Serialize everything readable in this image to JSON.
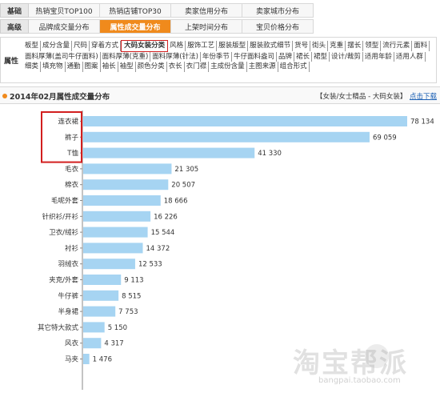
{
  "nav": {
    "row1": {
      "label": "基础",
      "tabs": [
        "热销宝贝TOP100",
        "热销店铺TOP30",
        "卖家信用分布",
        "卖家城市分布"
      ]
    },
    "row2": {
      "label": "高级",
      "tabs": [
        "品牌成交量分布",
        "属性成交量分布",
        "上架时间分布",
        "宝贝价格分布"
      ],
      "active_index": 1
    }
  },
  "attributes": {
    "label": "属性",
    "items": [
      "板型",
      "成分含量",
      "尺码",
      "穿着方式",
      "大码女装分类",
      "风格",
      "服饰工艺",
      "服装版型",
      "服装款式细节",
      "货号",
      "街头",
      "克重",
      "摆长",
      "领型",
      "流行元素",
      "面料",
      "面料厚薄(盖司牛仔面料)",
      "面料厚薄(克重)",
      "面料厚薄(针法)",
      "年份季节",
      "牛仔面料盎司",
      "品牌",
      "裙长",
      "裙型",
      "设计/裁剪",
      "适用年龄",
      "适用人群",
      "细类",
      "填充物",
      "通勤",
      "图案",
      "袖长",
      "袖型",
      "颜色分类",
      "衣长",
      "衣门襟",
      "主成份含量",
      "主图来源",
      "组合形式"
    ],
    "selected_index": 4
  },
  "section": {
    "title": "2014年02月属性成交量分布",
    "breadcrumb": "【女装/女士精品 - 大码女装】",
    "link": "点击下载"
  },
  "colors": {
    "bar": "#a6d4f2",
    "accent": "#f08a1c",
    "highlight": "#d21f1f"
  },
  "chart_data": {
    "type": "bar",
    "orientation": "horizontal",
    "categories": [
      "连衣裙",
      "裤子",
      "T恤",
      "毛衣",
      "棉衣",
      "毛呢外套",
      "针织衫/开衫",
      "卫衣/绒衫",
      "衬衫",
      "羽绒衣",
      "夹克/外套",
      "牛仔裤",
      "半身裙",
      "其它特大款式",
      "风衣",
      "马夹"
    ],
    "values": [
      78134,
      69059,
      41330,
      21305,
      20507,
      18666,
      16226,
      15544,
      14372,
      12533,
      9113,
      8515,
      7753,
      5150,
      4317,
      1476
    ],
    "value_labels": [
      "78 134",
      "69 059",
      "41 330",
      "21 305",
      "20 507",
      "18 666",
      "16 226",
      "15 544",
      "14 372",
      "12 533",
      "9 113",
      "8 515",
      "7 753",
      "5 150",
      "4 317",
      "1 476"
    ],
    "highlighted_categories": [
      0,
      1,
      2
    ],
    "xlim": [
      0,
      78134
    ],
    "grid": false
  },
  "watermark": {
    "text": "淘宝帮派",
    "url": "bangpai.taobao.com"
  }
}
